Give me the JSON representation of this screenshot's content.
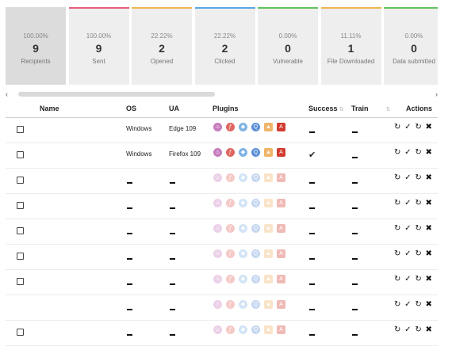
{
  "cards": [
    {
      "pct": "100.00%",
      "count": "9",
      "label": "Recipients",
      "color": "#dcdcdc",
      "active": true
    },
    {
      "pct": "100.00%",
      "count": "9",
      "label": "Sent",
      "color": "#e8607a"
    },
    {
      "pct": "22.22%",
      "count": "2",
      "label": "Opened",
      "color": "#f0b64e"
    },
    {
      "pct": "22.22%",
      "count": "2",
      "label": "Clicked",
      "color": "#5aa8e6"
    },
    {
      "pct": "0.00%",
      "count": "0",
      "label": "Vulnerable",
      "color": "#5fc45f"
    },
    {
      "pct": "11.11%",
      "count": "1",
      "label": "File Downloaded",
      "color": "#f0b64e"
    },
    {
      "pct": "0.00%",
      "count": "0",
      "label": "Data submitted",
      "color": "#5fc45f"
    }
  ],
  "scroll": {
    "left": "‹",
    "right": "›"
  },
  "columns": {
    "name": "Name",
    "os": "OS",
    "ua": "UA",
    "plugins": "Plugins",
    "success": "Success",
    "train": "Train",
    "actions": "Actions"
  },
  "rows": [
    {
      "checkbox": true,
      "os": "Windows",
      "ua": "Edge 109",
      "plugins_active": true,
      "success": "dash",
      "train": "dash"
    },
    {
      "checkbox": true,
      "os": "Windows",
      "ua": "Firefox 109",
      "plugins_active": true,
      "success": "check",
      "train": "dash"
    },
    {
      "checkbox": true,
      "os": "",
      "ua": "",
      "plugins_active": false,
      "success": "dash",
      "train": "dash"
    },
    {
      "checkbox": true,
      "os": "",
      "ua": "",
      "plugins_active": false,
      "success": "dash",
      "train": "dash"
    },
    {
      "checkbox": true,
      "os": "",
      "ua": "",
      "plugins_active": false,
      "success": "dash",
      "train": "dash"
    },
    {
      "checkbox": true,
      "os": "",
      "ua": "",
      "plugins_active": false,
      "success": "dash",
      "train": "dash"
    },
    {
      "checkbox": true,
      "os": "",
      "ua": "",
      "plugins_active": false,
      "success": "dash",
      "train": "dash"
    },
    {
      "checkbox": false,
      "os": "",
      "ua": "",
      "plugins_active": false,
      "success": "dash",
      "train": "dash"
    },
    {
      "checkbox": true,
      "os": "",
      "ua": "",
      "plugins_active": false,
      "success": "dash",
      "train": "dash"
    }
  ],
  "plugin_icons": [
    {
      "name": "java-icon",
      "glyph": "♨",
      "color": "#c77dbe"
    },
    {
      "name": "flash-icon",
      "glyph": "ƒ",
      "color": "#e0665e"
    },
    {
      "name": "silverlight-icon",
      "glyph": "◆",
      "color": "#7fb3e6"
    },
    {
      "name": "quicktime-icon",
      "glyph": "Q",
      "color": "#5b8fd6"
    },
    {
      "name": "vlc-icon",
      "glyph": "▲",
      "color": "#f0b46a"
    },
    {
      "name": "pdf-icon",
      "glyph": "A",
      "color": "#d23b2f"
    }
  ],
  "action_icons": [
    "↻",
    "✓",
    "↻",
    "✖"
  ]
}
